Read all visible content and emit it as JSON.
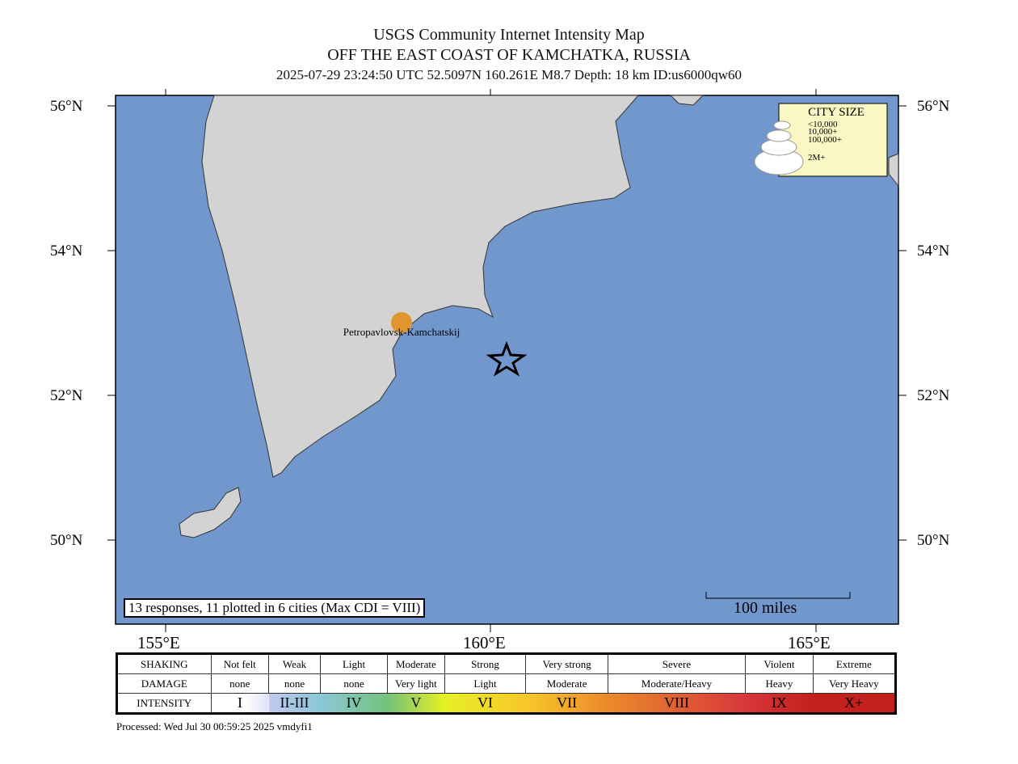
{
  "title": {
    "line1": "USGS Community Internet Intensity Map",
    "line2": "OFF THE EAST COAST OF KAMCHATKA, RUSSIA",
    "line3": "2025-07-29 23:24:50 UTC 52.5097N 160.261E M8.7 Depth: 18 km ID:us6000qw60"
  },
  "colors": {
    "ocean": "#7297cc",
    "land": "#d3d3d3",
    "city": "#e0962c",
    "legend_bg": "#fbf7c3"
  },
  "axes": {
    "lat_ticks": [
      "56°N",
      "54°N",
      "52°N",
      "50°N"
    ],
    "lon_ticks": [
      "155°E",
      "160°E",
      "165°E"
    ]
  },
  "city": {
    "name": "Petropavlovsk-Kamchatskij"
  },
  "epicenter": {
    "icon": "star-icon"
  },
  "city_size": {
    "title": "CITY SIZE",
    "items": [
      "<10,000",
      "10,000+",
      "100,000+",
      "2M+"
    ]
  },
  "responses": "13 responses, 11 plotted in 6 cities (Max CDI = VIII)",
  "scale_bar": "100 miles",
  "legend": {
    "shaking": [
      "SHAKING",
      "Not felt",
      "Weak",
      "Light",
      "Moderate",
      "Strong",
      "Very strong",
      "Severe",
      "Violent",
      "Extreme"
    ],
    "damage": [
      "DAMAGE",
      "none",
      "none",
      "none",
      "Very light",
      "Light",
      "Moderate",
      "Moderate/Heavy",
      "Heavy",
      "Very Heavy"
    ],
    "intensity": [
      "INTENSITY",
      "I",
      "II-III",
      "IV",
      "V",
      "VI",
      "VII",
      "VIII",
      "IX",
      "X+"
    ],
    "intensity_colors": [
      "#ffffff",
      "#bfc9f0",
      "#8ac8d8",
      "#74c17a",
      "#e6f024",
      "#f7c729",
      "#ea8a2b",
      "#d7363a",
      "#c4201c"
    ]
  },
  "processed": "Processed: Wed Jul 30 00:59:25 2025 vmdyfi1"
}
